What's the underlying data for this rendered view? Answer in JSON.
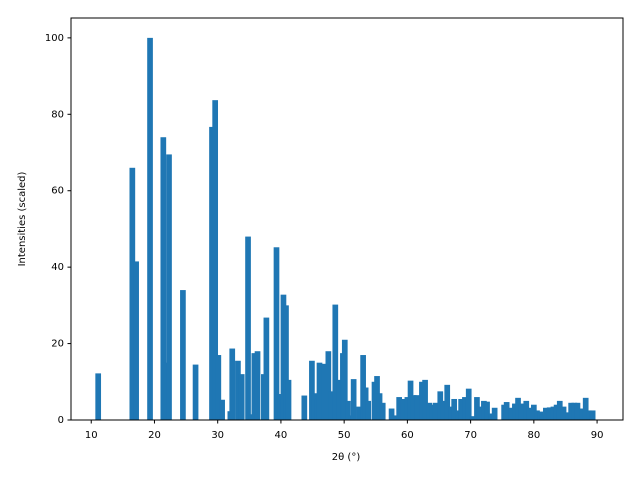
{
  "chart_data": {
    "type": "bar",
    "xlabel": "2θ (°)",
    "ylabel": "Intensities (scaled)",
    "color": "#1f77b4",
    "x": [
      11.1,
      16.5,
      17.1,
      19.3,
      21.4,
      21.8,
      22.3,
      24.5,
      26.5,
      29.1,
      29.6,
      30.1,
      30.7,
      32.0,
      32.3,
      33.2,
      33.8,
      34.8,
      35.4,
      35.8,
      36.3,
      37.3,
      37.7,
      39.3,
      39.9,
      40.4,
      40.8,
      41.2,
      43.7,
      44.9,
      45.3,
      45.8,
      46.1,
      46.9,
      47.5,
      48.0,
      48.6,
      49.2,
      49.8,
      50.1,
      50.6,
      51.2,
      51.5,
      52.4,
      53.0,
      53.4,
      53.8,
      54.8,
      55.2,
      55.6,
      56.1,
      57.5,
      58.0,
      58.7,
      59.3,
      60.0,
      60.5,
      61.0,
      61.5,
      62.3,
      62.8,
      63.5,
      64.0,
      64.5,
      65.2,
      65.7,
      66.3,
      66.9,
      67.4,
      68.0,
      68.5,
      69.1,
      69.7,
      70.3,
      71.0,
      71.4,
      72.1,
      72.6,
      73.3,
      73.8,
      75.3,
      75.7,
      76.5,
      77.0,
      77.5,
      78.1,
      78.8,
      79.3,
      80.0,
      80.5,
      81.0,
      81.4,
      81.9,
      82.5,
      83.1,
      83.6,
      84.1,
      84.7,
      85.4,
      85.9,
      86.4,
      86.9,
      87.6,
      88.2,
      88.7,
      89.3
    ],
    "values": [
      12.2,
      66,
      41.5,
      100,
      74,
      15,
      69.5,
      34,
      14.5,
      76.7,
      83.7,
      17,
      5.3,
      2.3,
      18.7,
      15.5,
      12,
      48,
      1.5,
      17.5,
      18,
      12,
      26.8,
      45.2,
      6.8,
      32.8,
      30,
      10.5,
      6.4,
      15.5,
      7,
      5.5,
      15,
      14.7,
      18,
      7.5,
      30.2,
      10.5,
      17.5,
      21,
      5,
      1.2,
      10.7,
      3.5,
      17,
      8.5,
      5,
      10,
      11.5,
      7,
      4.5,
      3,
      1.2,
      6,
      5.5,
      6,
      10.3,
      6.5,
      6.5,
      10,
      10.5,
      4.5,
      4,
      4.5,
      7.5,
      5,
      9.2,
      3.5,
      5.5,
      2.5,
      5.5,
      6,
      8.2,
      1,
      6,
      3.5,
      5,
      4.8,
      1.7,
      3.2,
      4,
      4.7,
      3.2,
      4.3,
      5.8,
      4.3,
      5,
      3.2,
      4,
      2.5,
      2.2,
      1.5,
      3.2,
      3.3,
      3.5,
      4,
      5,
      3.5,
      2,
      4.5,
      4.5,
      4.5,
      3,
      5.8,
      2.5,
      2.5
    ],
    "xlim": [
      6.8,
      94.1
    ],
    "xticks": [
      10,
      20,
      30,
      40,
      50,
      60,
      70,
      80,
      90
    ],
    "ylim": [
      0,
      105.2
    ],
    "yticks": [
      0,
      20,
      40,
      60,
      80,
      100
    ]
  }
}
